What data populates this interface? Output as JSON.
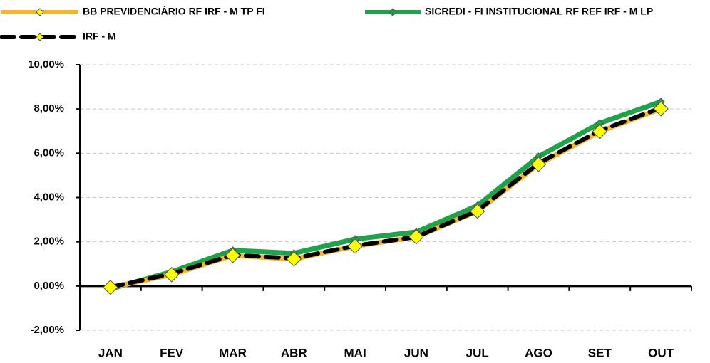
{
  "chart_data": {
    "type": "line",
    "categories": [
      "JAN",
      "FEV",
      "MAR",
      "ABR",
      "MAI",
      "JUN",
      "JUL",
      "AGO",
      "SET",
      "OUT"
    ],
    "series": [
      {
        "name": "SICREDI - FI INSTITUCIONAL RF REF IRF - M LP",
        "color": "#1fa34a",
        "marker_color": "#1fa34a",
        "values": [
          -0.13,
          0.64,
          1.61,
          1.48,
          2.12,
          2.44,
          3.63,
          5.85,
          7.36,
          8.33
        ]
      },
      {
        "name": "BB PREVIDENCIÁRIO RF IRF - M TP FI",
        "color": "#f7b52b",
        "marker_color": "#ffff00",
        "values": [
          -0.06,
          0.51,
          1.38,
          1.22,
          1.8,
          2.22,
          3.38,
          5.5,
          6.98,
          8.01
        ]
      },
      {
        "name": "IRF - M",
        "color": "#000000",
        "marker_color": "#ffff00",
        "dash": true,
        "values": [
          -0.05,
          0.55,
          1.4,
          1.25,
          1.82,
          2.22,
          3.4,
          5.55,
          7.02,
          8.05
        ]
      }
    ],
    "ylim": [
      -2,
      10
    ],
    "yticks": [
      {
        "value": -2,
        "label": "-2,00%"
      },
      {
        "value": 0,
        "label": "0,00%"
      },
      {
        "value": 2,
        "label": "2,00%"
      },
      {
        "value": 4,
        "label": "4,00%"
      },
      {
        "value": 6,
        "label": "6,00%"
      },
      {
        "value": 8,
        "label": "8,00%"
      },
      {
        "value": 10,
        "label": "10,00%"
      }
    ],
    "grid": true
  }
}
